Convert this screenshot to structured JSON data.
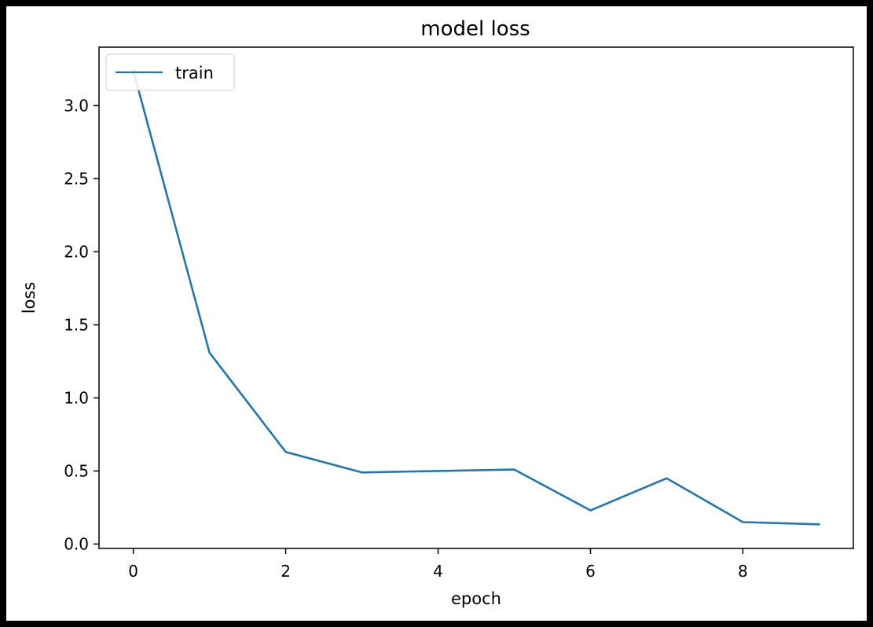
{
  "chart_data": {
    "type": "line",
    "title": "model loss",
    "xlabel": "epoch",
    "ylabel": "loss",
    "xlim": [
      -0.45,
      9.45
    ],
    "ylim": [
      -0.03,
      3.4
    ],
    "xticks": [
      0,
      2,
      4,
      6,
      8
    ],
    "xtick_labels": [
      "0",
      "2",
      "4",
      "6",
      "8"
    ],
    "yticks": [
      0.0,
      0.5,
      1.0,
      1.5,
      2.0,
      2.5,
      3.0
    ],
    "ytick_labels": [
      "0.0",
      "0.5",
      "1.0",
      "1.5",
      "2.0",
      "2.5",
      "3.0"
    ],
    "grid": false,
    "legend_position": "upper left",
    "series": [
      {
        "name": "train",
        "color": "#1f77b4",
        "x": [
          0,
          1,
          2,
          3,
          4,
          5,
          6,
          7,
          8,
          9
        ],
        "y": [
          3.24,
          1.31,
          0.63,
          0.49,
          0.5,
          0.51,
          0.23,
          0.45,
          0.15,
          0.135
        ]
      }
    ]
  }
}
